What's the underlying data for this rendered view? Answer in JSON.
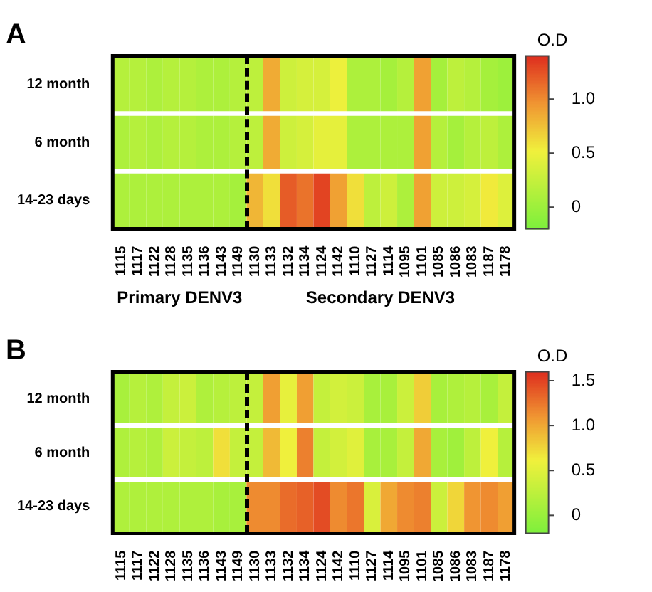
{
  "chart_data": [
    {
      "type": "heatmap",
      "title": "A",
      "categories": [
        "1115",
        "1117",
        "1122",
        "1128",
        "1135",
        "1136",
        "1143",
        "1149",
        "1130",
        "1133",
        "1132",
        "1134",
        "1124",
        "1142",
        "1110",
        "1127",
        "1114",
        "1095",
        "1101",
        "1085",
        "1086",
        "1083",
        "1187",
        "1178"
      ],
      "y_categories": [
        "12 month",
        "6 month",
        "14-23 days"
      ],
      "cells": [
        [
          0.15,
          0.15,
          0.1,
          0.15,
          0.15,
          0.1,
          0.1,
          0.15,
          0.2,
          0.85,
          0.3,
          0.35,
          0.35,
          0.5,
          0.1,
          0.1,
          0.05,
          0.15,
          0.9,
          0.05,
          0.2,
          0.15,
          0.05,
          0.0
        ],
        [
          0.1,
          0.15,
          0.1,
          0.15,
          0.15,
          0.1,
          0.1,
          0.15,
          0.2,
          0.85,
          0.3,
          0.35,
          0.45,
          0.45,
          0.1,
          0.1,
          0.1,
          0.1,
          0.9,
          0.15,
          0.05,
          0.15,
          0.2,
          0.1
        ],
        [
          0.1,
          0.1,
          0.1,
          0.1,
          0.1,
          0.1,
          0.1,
          0.05,
          0.8,
          0.6,
          1.2,
          1.1,
          1.3,
          0.9,
          0.6,
          0.2,
          0.3,
          0.1,
          0.9,
          0.3,
          0.3,
          0.35,
          0.55,
          0.4
        ]
      ],
      "clim": [
        -0.2,
        1.4
      ],
      "cticks": [
        0,
        0.5,
        {
          "value": 1,
          "label": "1.0"
        }
      ],
      "clabel": "O.D"
    },
    {
      "type": "heatmap",
      "title": "B",
      "annotations": [
        "Primary DENV3",
        "Secondary DENV3"
      ],
      "categories": [
        "1115",
        "1117",
        "1122",
        "1128",
        "1135",
        "1136",
        "1143",
        "1149",
        "1130",
        "1133",
        "1132",
        "1134",
        "1124",
        "1142",
        "1110",
        "1127",
        "1114",
        "1095",
        "1101",
        "1085",
        "1086",
        "1083",
        "1187",
        "1178"
      ],
      "y_categories": [
        "12 month",
        "6 month",
        "14-23 days"
      ],
      "cells": [
        [
          0.1,
          0.2,
          0.15,
          0.3,
          0.35,
          0.15,
          0.2,
          0.25,
          0.3,
          1.05,
          0.55,
          1.05,
          0.3,
          0.4,
          0.35,
          0.1,
          0.1,
          0.35,
          0.8,
          0.1,
          0.15,
          0.2,
          0.1,
          0.3
        ],
        [
          0.15,
          0.2,
          0.15,
          0.35,
          0.3,
          0.25,
          0.7,
          0.3,
          0.3,
          0.9,
          0.6,
          1.2,
          0.3,
          0.4,
          0.5,
          0.1,
          0.1,
          0.3,
          1.0,
          0.1,
          0.05,
          0.25,
          0.6,
          0.2
        ],
        [
          0.15,
          0.15,
          0.15,
          0.15,
          0.15,
          0.15,
          0.1,
          0.1,
          1.15,
          1.15,
          1.3,
          1.35,
          1.45,
          1.15,
          1.25,
          0.45,
          1.0,
          1.15,
          1.2,
          0.35,
          0.75,
          1.1,
          1.15,
          1.05
        ]
      ],
      "clim": [
        -0.2,
        1.6
      ],
      "cticks": [
        0,
        0.5,
        {
          "value": 1,
          "label": "1.0"
        },
        1.5
      ],
      "clabel": "O.D"
    }
  ]
}
